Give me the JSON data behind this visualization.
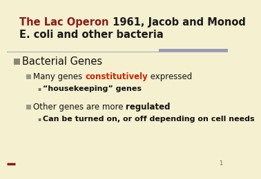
{
  "bg_color": "#f5f0d0",
  "title_red": "The Lac Operon",
  "title_black": " 1961, Jacob and Monod",
  "title_line2": "E. coli and other bacteria",
  "title_red_color": "#8b1a1a",
  "title_black_color": "#1a1a1a",
  "title_fontsize": 10.5,
  "separator_color": "#aaaabb",
  "separator_right_color": "#9999bb",
  "bullet1_text": "Bacterial Genes",
  "bullet1_fontsize": 10.5,
  "sub1_text_normal": "Many genes ",
  "sub1_text_red": "constitutively",
  "sub1_text_normal2": " expressed",
  "sub1_red_color": "#cc2200",
  "sub1_fontsize": 8.5,
  "sub2_text": "“housekeeping” genes",
  "sub2_fontsize": 8.0,
  "bullet2_text_normal": "Other genes are more ",
  "bullet2_text_bold": "regulated",
  "bullet2_fontsize": 8.5,
  "sub3_text": "Can be turned on, or off depending on cell needs",
  "sub3_fontsize": 8.0,
  "page_number": "1",
  "page_num_fontsize": 6,
  "square_bullet_color": "#888877",
  "small_bullet_color": "#999988",
  "left_bar_color": "#8b1a1a"
}
